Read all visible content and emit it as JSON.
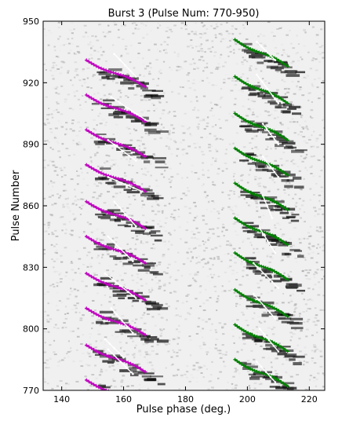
{
  "chart_data": {
    "type": "scatter",
    "title": "Burst 3 (Pulse Num: 770-950)",
    "xlabel": "Pulse phase (deg.)",
    "ylabel": "Pulse Number",
    "xlim": [
      134,
      225
    ],
    "ylim": [
      770,
      950
    ],
    "xticks": [
      140,
      160,
      180,
      200,
      220
    ],
    "yticks": [
      770,
      800,
      830,
      860,
      890,
      920,
      950
    ],
    "grid": false,
    "legend": "none",
    "background": "grayscale single-pulse intensity map with two drifting subpulse regions",
    "colors": {
      "left_series": "#c000c0",
      "right_series": "#008000",
      "fit_lines": "#ffffff"
    },
    "left_tracks_start_pulse": [
      775,
      792,
      810,
      827,
      845,
      862,
      880,
      897,
      914,
      931
    ],
    "right_tracks_start_pulse": [
      785,
      802,
      819,
      837,
      854,
      871,
      888,
      905,
      923,
      941
    ],
    "left_track_phase_range": [
      148,
      167
    ],
    "right_track_phase_range": [
      196,
      213
    ],
    "track_pulse_span": 13,
    "white_fit_segments": [
      {
        "x": [
          155,
          163
        ],
        "y": [
          790,
          778
        ]
      },
      {
        "x": [
          154,
          160
        ],
        "y": [
          795,
          786
        ]
      },
      {
        "x": [
          156,
          163
        ],
        "y": [
          810,
          798
        ]
      },
      {
        "x": [
          154,
          164
        ],
        "y": [
          827,
          815
        ]
      },
      {
        "x": [
          155,
          163
        ],
        "y": [
          845,
          833
        ]
      },
      {
        "x": [
          157,
          164
        ],
        "y": [
          862,
          850
        ]
      },
      {
        "x": [
          155,
          166
        ],
        "y": [
          874,
          867
        ]
      },
      {
        "x": [
          155,
          164
        ],
        "y": [
          892,
          882
        ]
      },
      {
        "x": [
          156,
          167
        ],
        "y": [
          913,
          902
        ]
      },
      {
        "x": [
          157,
          164
        ],
        "y": [
          934,
          923
        ]
      },
      {
        "x": [
          203,
          209
        ],
        "y": [
          784,
          774
        ]
      },
      {
        "x": [
          204,
          210
        ],
        "y": [
          800,
          789
        ]
      },
      {
        "x": [
          202,
          209
        ],
        "y": [
          817,
          805
        ]
      },
      {
        "x": [
          202,
          210
        ],
        "y": [
          832,
          820
        ]
      },
      {
        "x": [
          204,
          209
        ],
        "y": [
          849,
          837
        ]
      },
      {
        "x": [
          205,
          208
        ],
        "y": [
          865,
          854
        ]
      },
      {
        "x": [
          205,
          210
        ],
        "y": [
          884,
          874
        ]
      },
      {
        "x": [
          205,
          210
        ],
        "y": [
          900,
          890
        ]
      },
      {
        "x": [
          203,
          210
        ],
        "y": [
          924,
          910
        ]
      },
      {
        "x": [
          203,
          209
        ],
        "y": [
          940,
          931
        ]
      }
    ]
  }
}
